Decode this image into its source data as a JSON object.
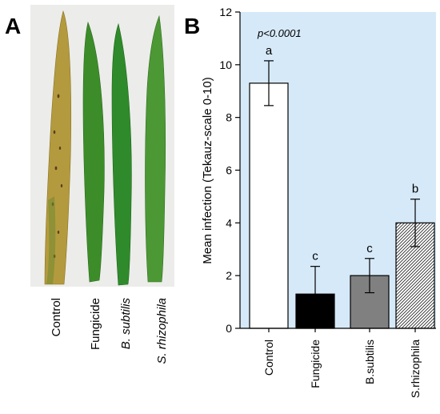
{
  "panel_a": {
    "label": "A",
    "leaves": [
      {
        "label": "Control",
        "italic": false,
        "color": "#b9a040"
      },
      {
        "label": "Fungicide",
        "italic": false,
        "color": "#3d8f2c"
      },
      {
        "label": "B. subtilis",
        "italic": true,
        "color": "#2f8a2a"
      },
      {
        "label": "S. rhizophila",
        "italic": true,
        "color": "#4f9a35"
      }
    ]
  },
  "panel_b": {
    "label": "B",
    "annotation": "p<0.0001"
  },
  "chart_data": {
    "type": "bar",
    "title": "",
    "xlabel": "",
    "ylabel": "Mean infection (Tekauz-scale 0-10)",
    "ylim": [
      0,
      12
    ],
    "yticks": [
      "0",
      "2",
      "4",
      "6",
      "8",
      "10",
      "12"
    ],
    "categories": [
      "Control",
      "Fungicide",
      "B.subtilis",
      "S.rhizophila"
    ],
    "values": [
      9.3,
      1.3,
      2.0,
      4.0
    ],
    "errors": [
      0.85,
      1.05,
      0.65,
      0.9
    ],
    "significance_letters": [
      "a",
      "c",
      "c",
      "b"
    ],
    "bar_fills": [
      "#ffffff",
      "#000000",
      "#808080",
      "hatched"
    ],
    "plot_background": "#d6e9f8",
    "grid": false
  }
}
